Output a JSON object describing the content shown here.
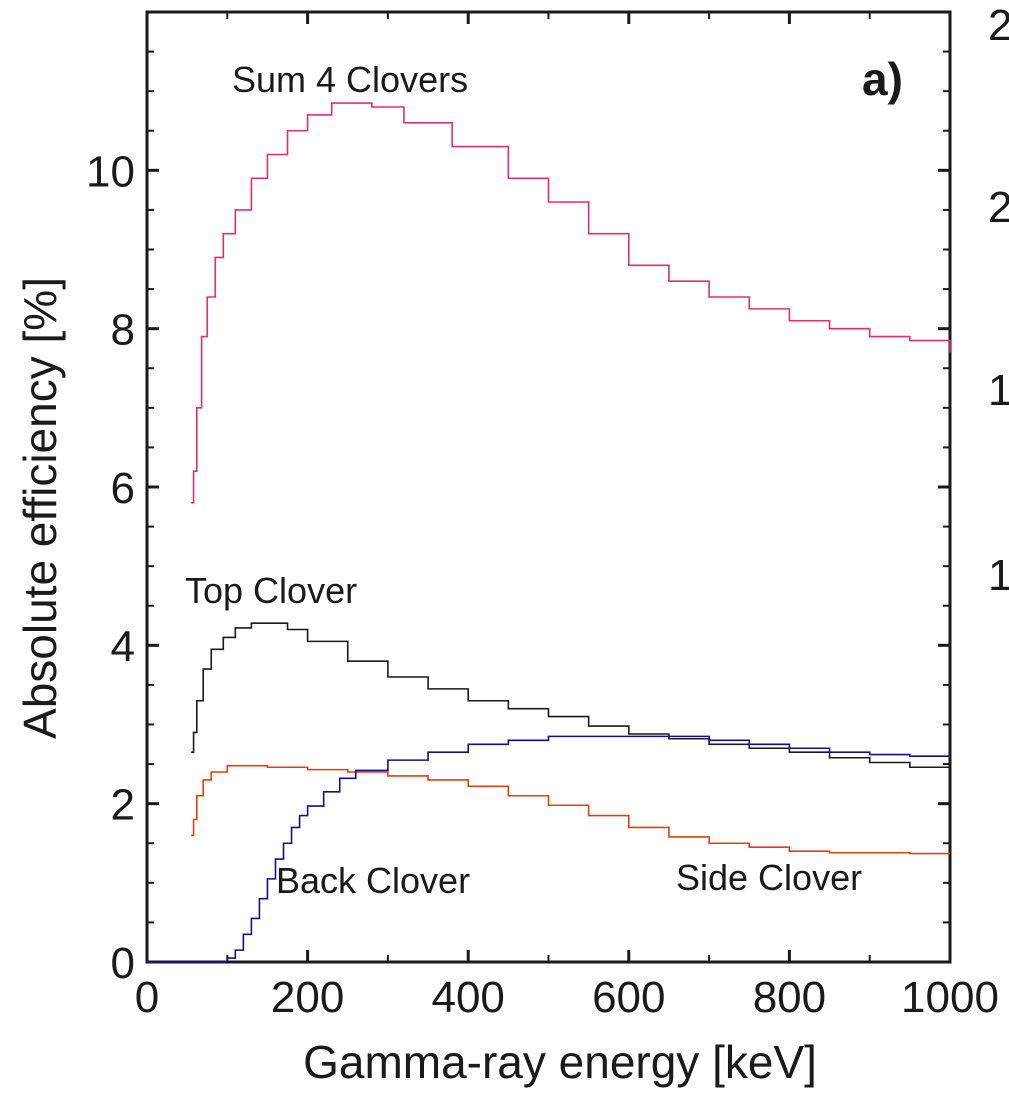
{
  "chart_data": {
    "type": "line",
    "panel_label": "a)",
    "xlabel": "Gamma-ray energy [keV]",
    "ylabel": "Absolute efficiency [%]",
    "xlim": [
      0,
      1000
    ],
    "ylim": [
      0,
      12
    ],
    "x_ticks": [
      0,
      200,
      400,
      600,
      800,
      1000
    ],
    "y_ticks": [
      0,
      2,
      4,
      6,
      8,
      10
    ],
    "grid": false,
    "series": [
      {
        "name": "Sum 4 Clovers",
        "color": "#e0306a",
        "points": [
          [
            55,
            5.8
          ],
          [
            58,
            6.2
          ],
          [
            62,
            7.0
          ],
          [
            68,
            7.9
          ],
          [
            75,
            8.4
          ],
          [
            85,
            8.9
          ],
          [
            95,
            9.2
          ],
          [
            110,
            9.5
          ],
          [
            130,
            9.9
          ],
          [
            150,
            10.2
          ],
          [
            175,
            10.5
          ],
          [
            200,
            10.7
          ],
          [
            230,
            10.85
          ],
          [
            250,
            10.85
          ],
          [
            280,
            10.8
          ],
          [
            320,
            10.6
          ],
          [
            380,
            10.3
          ],
          [
            450,
            9.9
          ],
          [
            500,
            9.6
          ],
          [
            550,
            9.2
          ],
          [
            600,
            8.8
          ],
          [
            650,
            8.6
          ],
          [
            700,
            8.4
          ],
          [
            750,
            8.25
          ],
          [
            800,
            8.1
          ],
          [
            850,
            8.0
          ],
          [
            900,
            7.9
          ],
          [
            950,
            7.85
          ],
          [
            1000,
            7.7
          ]
        ]
      },
      {
        "name": "Top Clover",
        "color": "#1a1a1a",
        "points": [
          [
            55,
            2.65
          ],
          [
            58,
            2.9
          ],
          [
            62,
            3.3
          ],
          [
            70,
            3.7
          ],
          [
            80,
            3.95
          ],
          [
            95,
            4.1
          ],
          [
            110,
            4.22
          ],
          [
            130,
            4.28
          ],
          [
            150,
            4.28
          ],
          [
            175,
            4.2
          ],
          [
            200,
            4.05
          ],
          [
            250,
            3.8
          ],
          [
            300,
            3.6
          ],
          [
            350,
            3.45
          ],
          [
            400,
            3.3
          ],
          [
            450,
            3.2
          ],
          [
            500,
            3.1
          ],
          [
            550,
            2.98
          ],
          [
            600,
            2.88
          ],
          [
            650,
            2.82
          ],
          [
            700,
            2.75
          ],
          [
            750,
            2.7
          ],
          [
            800,
            2.65
          ],
          [
            850,
            2.58
          ],
          [
            900,
            2.52
          ],
          [
            950,
            2.46
          ],
          [
            1000,
            2.42
          ]
        ]
      },
      {
        "name": "Side Clover",
        "color": "#e04010",
        "points": [
          [
            55,
            1.6
          ],
          [
            58,
            1.8
          ],
          [
            62,
            2.1
          ],
          [
            70,
            2.3
          ],
          [
            80,
            2.4
          ],
          [
            100,
            2.48
          ],
          [
            130,
            2.48
          ],
          [
            150,
            2.46
          ],
          [
            200,
            2.43
          ],
          [
            250,
            2.4
          ],
          [
            300,
            2.35
          ],
          [
            350,
            2.3
          ],
          [
            400,
            2.22
          ],
          [
            450,
            2.1
          ],
          [
            500,
            1.98
          ],
          [
            550,
            1.85
          ],
          [
            600,
            1.7
          ],
          [
            650,
            1.58
          ],
          [
            700,
            1.5
          ],
          [
            750,
            1.45
          ],
          [
            800,
            1.4
          ],
          [
            850,
            1.38
          ],
          [
            900,
            1.38
          ],
          [
            950,
            1.37
          ],
          [
            1000,
            1.37
          ]
        ]
      },
      {
        "name": "Back Clover",
        "color": "#1a0a8a",
        "points": [
          [
            0,
            0
          ],
          [
            60,
            0
          ],
          [
            90,
            0
          ],
          [
            100,
            0.05
          ],
          [
            110,
            0.15
          ],
          [
            120,
            0.35
          ],
          [
            130,
            0.55
          ],
          [
            140,
            0.8
          ],
          [
            150,
            1.05
          ],
          [
            160,
            1.3
          ],
          [
            170,
            1.5
          ],
          [
            180,
            1.7
          ],
          [
            190,
            1.85
          ],
          [
            200,
            1.97
          ],
          [
            220,
            2.15
          ],
          [
            240,
            2.32
          ],
          [
            260,
            2.42
          ],
          [
            300,
            2.55
          ],
          [
            350,
            2.65
          ],
          [
            400,
            2.75
          ],
          [
            450,
            2.8
          ],
          [
            500,
            2.85
          ],
          [
            550,
            2.85
          ],
          [
            600,
            2.85
          ],
          [
            650,
            2.85
          ],
          [
            700,
            2.8
          ],
          [
            750,
            2.75
          ],
          [
            800,
            2.7
          ],
          [
            850,
            2.65
          ],
          [
            900,
            2.62
          ],
          [
            950,
            2.6
          ],
          [
            1000,
            2.58
          ]
        ]
      }
    ],
    "annotations": [
      "Sum 4 Clovers",
      "Top Clover",
      "Back Clover",
      "Side Clover"
    ],
    "right_edge_partial_labels": [
      "2",
      "2",
      "1",
      "1"
    ]
  }
}
